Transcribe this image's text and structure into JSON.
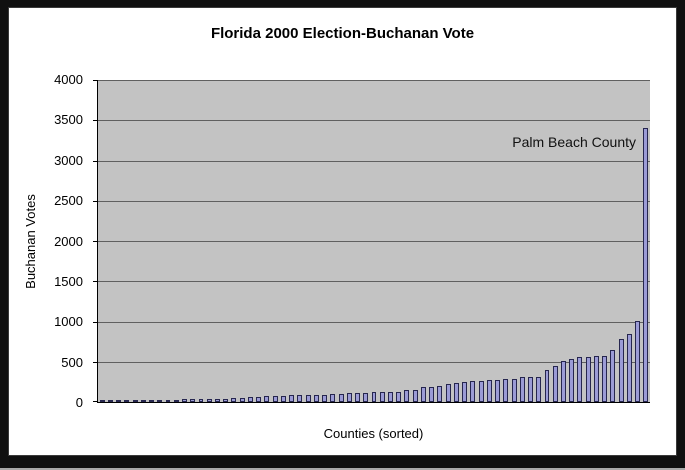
{
  "colors": {
    "window_bg": "#101010",
    "frame_bg": "#ffffff",
    "plot_bg": "#c3c3c3",
    "grid": "#606060",
    "bar_fill": "#9b9bd6",
    "bar_border": "#26264f"
  },
  "chart_data": {
    "type": "bar",
    "title": "Florida 2000 Election-Buchanan Vote",
    "xlabel": "Counties (sorted)",
    "ylabel": "Buchanan Votes",
    "annotation": "Palm Beach County",
    "ylim": [
      0,
      4000
    ],
    "yticks": [
      0,
      500,
      1000,
      1500,
      2000,
      2500,
      3000,
      3500,
      4000
    ],
    "n_bars": 67,
    "grid": true,
    "legend": false,
    "values": [
      9,
      10,
      22,
      24,
      27,
      29,
      29,
      29,
      29,
      30,
      33,
      36,
      37,
      39,
      39,
      43,
      46,
      47,
      65,
      67,
      71,
      73,
      76,
      83,
      88,
      89,
      90,
      90,
      102,
      105,
      108,
      112,
      114,
      120,
      122,
      124,
      127,
      145,
      147,
      182,
      186,
      194,
      229,
      242,
      248,
      263,
      267,
      270,
      272,
      282,
      289,
      305,
      305,
      311,
      396,
      446,
      504,
      538,
      560,
      563,
      570,
      570,
      652,
      788,
      847,
      1010,
      3407
    ]
  }
}
